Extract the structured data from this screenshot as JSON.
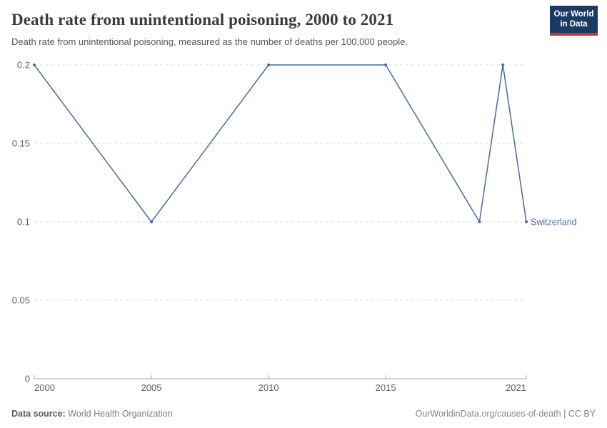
{
  "header": {
    "title": "Death rate from unintentional poisoning, 2000 to 2021",
    "subtitle": "Death rate from unintentional poisoning, measured as the number of deaths per 100,000 people.",
    "logo": {
      "line1": "Our World",
      "line2": "in Data",
      "bg_color": "#1b3a63",
      "bar_color": "#c0343a"
    }
  },
  "chart_data": {
    "type": "line",
    "title": "Death rate from unintentional poisoning, 2000 to 2021",
    "subtitle": "Death rate from unintentional poisoning, measured as the number of deaths per 100,000 people.",
    "xlabel": "",
    "ylabel": "",
    "xlim": [
      2000,
      2021
    ],
    "ylim": [
      0,
      0.2
    ],
    "x_ticks": [
      2000,
      2005,
      2010,
      2015,
      2021
    ],
    "y_ticks": [
      0,
      0.05,
      0.1,
      0.15,
      0.2
    ],
    "grid": "horizontal-dashed",
    "legend_position": "end-of-line-label",
    "series": [
      {
        "name": "Switzerland",
        "color": "#4c6a9c",
        "x": [
          2000,
          2005,
          2010,
          2015,
          2019,
          2020,
          2021
        ],
        "y": [
          0.2,
          0.1,
          0.2,
          0.2,
          0.1,
          0.2,
          0.1
        ]
      }
    ]
  },
  "footer": {
    "source_label": "Data source:",
    "source_value": "World Health Organization",
    "credit": "OurWorldinData.org/causes-of-death | CC BY"
  },
  "colors": {
    "line": "#4c6a9c",
    "gridline": "#dedede",
    "axis": "#a9a9a9",
    "tick_label": "#5e5e5e",
    "title": "#3b3b3b",
    "subtitle": "#565656"
  }
}
